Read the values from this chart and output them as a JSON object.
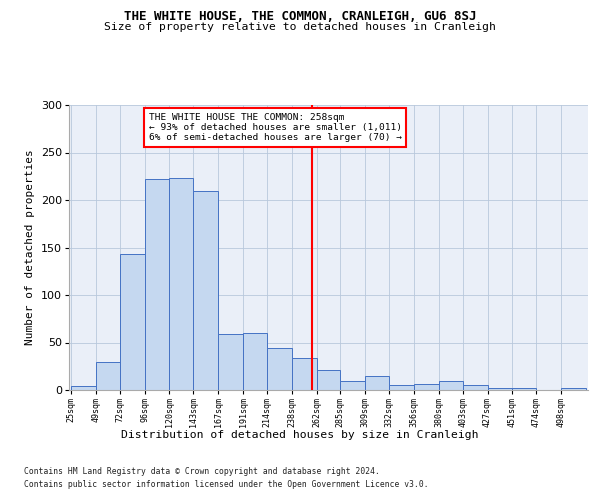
{
  "title": "THE WHITE HOUSE, THE COMMON, CRANLEIGH, GU6 8SJ",
  "subtitle": "Size of property relative to detached houses in Cranleigh",
  "xlabel_bottom": "Distribution of detached houses by size in Cranleigh",
  "ylabel": "Number of detached properties",
  "categories": [
    "25sqm",
    "49sqm",
    "72sqm",
    "96sqm",
    "120sqm",
    "143sqm",
    "167sqm",
    "191sqm",
    "214sqm",
    "238sqm",
    "262sqm",
    "285sqm",
    "309sqm",
    "332sqm",
    "356sqm",
    "380sqm",
    "403sqm",
    "427sqm",
    "451sqm",
    "474sqm",
    "498sqm"
  ],
  "bin_edges": [
    25,
    49,
    72,
    96,
    120,
    143,
    167,
    191,
    214,
    238,
    262,
    285,
    309,
    332,
    356,
    380,
    403,
    427,
    451,
    474,
    498
  ],
  "bin_counts": [
    4,
    30,
    143,
    222,
    223,
    210,
    59,
    60,
    44,
    34,
    21,
    10,
    15,
    5,
    6,
    9,
    5,
    2,
    2,
    0,
    2
  ],
  "bar_color": "#c5d8f0",
  "bar_edge_color": "#4472c4",
  "vline_x": 258,
  "vline_color": "red",
  "annotation_title": "THE WHITE HOUSE THE COMMON: 258sqm",
  "annotation_line1": "← 93% of detached houses are smaller (1,011)",
  "annotation_line2": "6% of semi-detached houses are larger (70) →",
  "ylim": [
    0,
    300
  ],
  "yticks": [
    0,
    50,
    100,
    150,
    200,
    250,
    300
  ],
  "footer1": "Contains HM Land Registry data © Crown copyright and database right 2024.",
  "footer2": "Contains public sector information licensed under the Open Government Licence v3.0.",
  "plot_bg_color": "#eaeff8"
}
